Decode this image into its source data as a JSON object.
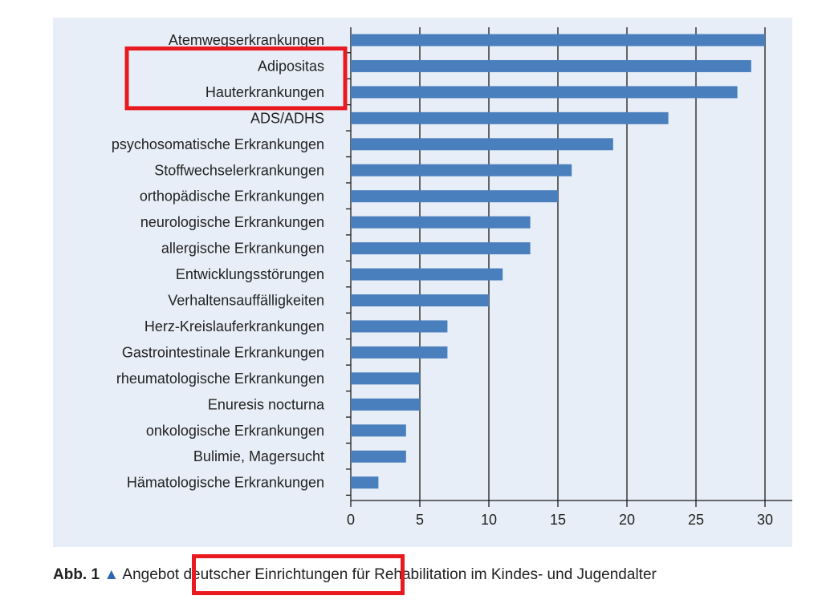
{
  "chart_data": {
    "type": "bar",
    "orientation": "horizontal",
    "categories": [
      "Atemwegserkrankungen",
      "Adipositas",
      "Hauterkrankungen",
      "ADS/ADHS",
      "psychosomatische Erkrankungen",
      "Stoffwechselerkrankungen",
      "orthopädische Erkrankungen",
      "neurologische Erkrankungen",
      "allergische Erkrankungen",
      "Entwicklungsstörungen",
      "Verhaltensauffälligkeiten",
      "Herz-Kreislauferkrankungen",
      "Gastrointestinale Erkrankungen",
      "rheumatologische Erkrankungen",
      "Enuresis nocturna",
      "onkologische Erkrankungen",
      "Bulimie, Magersucht",
      "Hämatologische Erkrankungen"
    ],
    "values": [
      30,
      29,
      28,
      23,
      19,
      16,
      15,
      13,
      13,
      11,
      10,
      7,
      7,
      5,
      5,
      4,
      4,
      2
    ],
    "xlim": [
      0,
      30
    ],
    "xticks": [
      "0",
      "5",
      "10",
      "15",
      "20",
      "25",
      "30"
    ],
    "grid": "vertical",
    "bar_color": "#4a7fbd",
    "highlighted_categories": [
      "Adipositas",
      "Hauterkrankungen"
    ],
    "highlight_color": "#e8191f"
  },
  "caption": {
    "figure_number": "Abb. 1",
    "marker": "▲",
    "text_before": "Angebot",
    "text_highlighted": "deutscher Einrichtungen",
    "text_after": "für Rehabilitation im Kindes- und Jugendalter"
  }
}
